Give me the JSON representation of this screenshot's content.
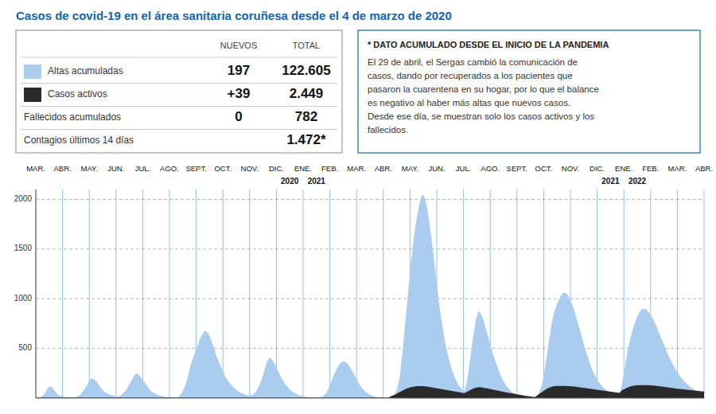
{
  "chart_data": {
    "type": "area",
    "title": "Casos de covid-19 en el área sanitaria coruñesa desde el 4 de marzo de 2020",
    "stacked": false,
    "grid": true,
    "xlim": [
      0,
      237
    ],
    "xticks": [
      {
        "value": 0,
        "label": "MAR."
      },
      {
        "value": 9.48,
        "label": "ABR."
      },
      {
        "value": 18.96,
        "label": "MAY."
      },
      {
        "value": 28.44,
        "label": "JUN."
      },
      {
        "value": 37.92,
        "label": "JUL."
      },
      {
        "value": 47.4,
        "label": "AGO."
      },
      {
        "value": 56.88,
        "label": "SEPT."
      },
      {
        "value": 66.36,
        "label": "OCT."
      },
      {
        "value": 75.84,
        "label": "NOV."
      },
      {
        "value": 85.32,
        "label": "DIC."
      },
      {
        "value": 94.8,
        "label": "ENE."
      },
      {
        "value": 104.28,
        "label": "FEB."
      },
      {
        "value": 113.76,
        "label": "MAR."
      },
      {
        "value": 123.24,
        "label": "ABR."
      },
      {
        "value": 132.72,
        "label": "MAY."
      },
      {
        "value": 142.2,
        "label": "JUN."
      },
      {
        "value": 151.68,
        "label": "JUL."
      },
      {
        "value": 161.16,
        "label": "AGO."
      },
      {
        "value": 170.64,
        "label": "SEPT."
      },
      {
        "value": 180.12,
        "label": "OCT."
      },
      {
        "value": 189.6,
        "label": "NOV."
      },
      {
        "value": 199.08,
        "label": "DIC."
      },
      {
        "value": 208.56,
        "label": "ENE."
      },
      {
        "value": 218.04,
        "label": "FEB."
      },
      {
        "value": 227.52,
        "label": "MAR."
      },
      {
        "value": 237,
        "label": "ABR."
      }
    ],
    "ylim": [
      0,
      2100
    ],
    "yticks": [
      500,
      1000,
      1500,
      2000
    ],
    "annotations": [
      {
        "text": "2020",
        "x": 90.06
      },
      {
        "text": "2021",
        "x": 99.54
      },
      {
        "text": "2021",
        "x": 203.82
      },
      {
        "text": "2022",
        "x": 213.3
      }
    ],
    "series": [
      {
        "name": "Altas acumuladas",
        "color": "#aaccee",
        "new": 197,
        "total": {
          "value": 122605,
          "label": "122.605"
        },
        "values": [
          2,
          5,
          12,
          40,
          90,
          120,
          100,
          60,
          30,
          20,
          15,
          10,
          8,
          5,
          8,
          20,
          40,
          80,
          120,
          180,
          200,
          180,
          150,
          100,
          70,
          50,
          40,
          30,
          20,
          15,
          25,
          50,
          80,
          130,
          180,
          230,
          250,
          220,
          180,
          140,
          100,
          70,
          50,
          35,
          25,
          18,
          13,
          9,
          6,
          4,
          5,
          20,
          60,
          130,
          220,
          340,
          420,
          500,
          580,
          640,
          680,
          660,
          600,
          520,
          430,
          360,
          290,
          230,
          180,
          140,
          110,
          85,
          65,
          50,
          38,
          28,
          25,
          35,
          60,
          110,
          180,
          270,
          370,
          410,
          380,
          330,
          270,
          210,
          160,
          120,
          88,
          65,
          48,
          34,
          24,
          17,
          12,
          8,
          5,
          4,
          4,
          8,
          20,
          50,
          110,
          180,
          250,
          310,
          350,
          370,
          360,
          330,
          285,
          230,
          175,
          128,
          90,
          62,
          42,
          28,
          18,
          11,
          7,
          4,
          3,
          2,
          10,
          30,
          80,
          200,
          450,
          750,
          1050,
          1350,
          1600,
          1800,
          1950,
          2050,
          2020,
          1880,
          1680,
          1450,
          1200,
          960,
          760,
          590,
          450,
          340,
          250,
          180,
          128,
          90,
          65,
          180,
          380,
          600,
          780,
          880,
          840,
          760,
          660,
          560,
          460,
          370,
          290,
          220,
          165,
          120,
          86,
          60,
          42,
          28,
          18,
          12,
          8,
          5,
          4,
          3,
          25,
          90,
          200,
          380,
          580,
          760,
          880,
          960,
          1020,
          1060,
          1060,
          1020,
          960,
          880,
          780,
          680,
          580,
          480,
          390,
          310,
          245,
          190,
          148,
          115,
          88,
          68,
          52,
          40,
          30,
          22,
          165,
          320,
          490,
          620,
          720,
          800,
          860,
          900,
          900,
          880,
          840,
          790,
          730,
          660,
          590,
          520,
          450,
          390,
          335,
          285,
          240,
          200,
          168,
          140,
          116,
          96,
          78,
          63,
          50,
          40
        ]
      },
      {
        "name": "Casos activos",
        "color": "#2a2a2a",
        "new": {
          "value": 39,
          "label": "+39"
        },
        "total": {
          "value": 2449,
          "label": "2.449"
        },
        "values": [
          5,
          5,
          5,
          5,
          5,
          5,
          5,
          5,
          5,
          5,
          5,
          5,
          5,
          5,
          5,
          5,
          5,
          5,
          5,
          5,
          5,
          5,
          5,
          5,
          5,
          5,
          5,
          5,
          5,
          5,
          5,
          5,
          5,
          5,
          5,
          5,
          5,
          5,
          5,
          5,
          5,
          5,
          5,
          5,
          5,
          5,
          5,
          5,
          5,
          5,
          5,
          5,
          5,
          5,
          5,
          5,
          5,
          5,
          5,
          5,
          5,
          5,
          5,
          5,
          5,
          5,
          5,
          5,
          5,
          5,
          5,
          5,
          5,
          5,
          5,
          5,
          5,
          5,
          5,
          5,
          5,
          5,
          5,
          5,
          5,
          5,
          5,
          5,
          5,
          5,
          5,
          5,
          5,
          5,
          5,
          5,
          5,
          5,
          5,
          5,
          5,
          5,
          5,
          5,
          5,
          5,
          5,
          5,
          5,
          5,
          5,
          5,
          5,
          5,
          5,
          5,
          5,
          5,
          5,
          5,
          5,
          5,
          5,
          5,
          5,
          5,
          20,
          30,
          45,
          60,
          75,
          90,
          100,
          110,
          115,
          120,
          120,
          120,
          118,
          115,
          110,
          105,
          100,
          95,
          90,
          85,
          80,
          75,
          70,
          65,
          60,
          55,
          50,
          65,
          80,
          95,
          105,
          110,
          108,
          103,
          98,
          92,
          87,
          81,
          75,
          69,
          63,
          57,
          52,
          47,
          42,
          37,
          32,
          27,
          22,
          18,
          14,
          10,
          30,
          50,
          70,
          90,
          105,
          115,
          120,
          122,
          123,
          123,
          122,
          121,
          119,
          116,
          112,
          108,
          104,
          100,
          96,
          92,
          88,
          84,
          80,
          76,
          72,
          68,
          64,
          60,
          56,
          52,
          80,
          95,
          108,
          118,
          124,
          128,
          130,
          131,
          131,
          130,
          128,
          126,
          123,
          120,
          116,
          112,
          108,
          104,
          100,
          96,
          93,
          90,
          87,
          84,
          81,
          78,
          75,
          72,
          69,
          66
        ]
      }
    ],
    "summary_columns": [
      "NUEVOS",
      "TOTAL"
    ],
    "summary": [
      {
        "name": "Fallecidos acumulados",
        "new": 0,
        "total": 782
      },
      {
        "name": "Contagios últimos 14 días",
        "total": {
          "value": 1472,
          "label": "1.472*"
        }
      }
    ],
    "notes": [
      "* DATO ACUMULADO DESDE EL INICIO DE LA PANDEMIA",
      "El 29 de abril, el Sergas cambió la comunicación de",
      "casos, dando por recuperados a los pacientes que",
      "pasaron la cuarentena en su hogar, por lo que el balance",
      "es negativo al haber más altas que nuevos casos.",
      "Desde ese día, se muestran solo los casos activos y los",
      "fallecidos."
    ]
  }
}
